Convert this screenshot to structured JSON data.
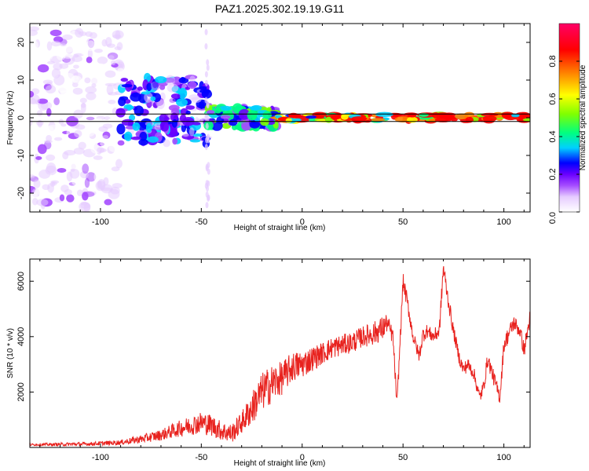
{
  "title": "PAZ1.2025.302.19.19.G11",
  "colors": {
    "snr_line": "#e8221e",
    "frame": "#000000",
    "colormap": [
      "#ffffff",
      "#e6ccff",
      "#a64dff",
      "#6a00ff",
      "#0000ff",
      "#00d0ff",
      "#00ff80",
      "#80ff00",
      "#ffff00",
      "#ff8000",
      "#ff0000",
      "#ff0066"
    ]
  },
  "chart_data": [
    {
      "type": "heatmap",
      "name": "spectrogram",
      "xlabel": "Height of straight line (km)",
      "ylabel": "Frequency (Hz)",
      "xlim": [
        -135,
        113
      ],
      "ylim": [
        -25,
        25
      ],
      "x_ticks": [
        -100,
        -50,
        0,
        50,
        100
      ],
      "y_ticks": [
        -20,
        -10,
        0,
        10,
        20
      ],
      "x_tick_labels": [
        "-100",
        "-50",
        "0",
        "50",
        "100"
      ],
      "y_tick_labels": [
        "-20",
        "-10",
        "0",
        "10",
        "20"
      ],
      "colorbar": {
        "label": "Normalized spectral amplitude",
        "range": [
          0,
          1
        ],
        "ticks": [
          0,
          0.2,
          0.4,
          0.6,
          0.8
        ],
        "tick_labels": [
          "0.0",
          "0.2",
          "0.4",
          "0.6",
          "0.8"
        ]
      },
      "reference_lines_hz": [
        1,
        -1
      ],
      "description_of_signal": [
        {
          "x_range": [
            -135,
            -90
          ],
          "frequency_spread_hz": 24,
          "amplitude": 0.1
        },
        {
          "x_range": [
            -90,
            -47
          ],
          "frequency_spread_hz": 10,
          "amplitude": 0.25
        },
        {
          "x_range": [
            -47,
            -12
          ],
          "frequency_spread_hz": 3,
          "amplitude": 0.35
        },
        {
          "x_range": [
            -12,
            113
          ],
          "frequency_spread_hz": 1,
          "amplitude": 0.8
        }
      ]
    },
    {
      "type": "line",
      "name": "snr",
      "xlabel": "Height of straight line (km)",
      "ylabel": "SNR (10 * v/v)",
      "xlim": [
        -135,
        113
      ],
      "ylim": [
        0,
        6800
      ],
      "x_ticks": [
        -100,
        -50,
        0,
        50,
        100
      ],
      "y_ticks": [
        2000,
        4000,
        6000
      ],
      "x_tick_labels": [
        "-100",
        "-50",
        "0",
        "50",
        "100"
      ],
      "y_tick_labels": [
        "2000",
        "4000",
        "6000"
      ],
      "series": [
        {
          "name": "SNR",
          "x": [
            -135,
            -120,
            -105,
            -90,
            -80,
            -70,
            -60,
            -50,
            -45,
            -40,
            -35,
            -30,
            -25,
            -20,
            -15,
            -10,
            -5,
            0,
            5,
            10,
            15,
            20,
            25,
            30,
            35,
            40,
            42,
            45,
            47,
            50,
            52,
            55,
            58,
            60,
            62,
            65,
            68,
            70,
            72,
            75,
            78,
            80,
            82,
            85,
            88,
            90,
            92,
            95,
            98,
            100,
            103,
            105,
            108,
            110,
            113
          ],
          "values": [
            100,
            110,
            130,
            180,
            300,
            450,
            700,
            900,
            800,
            600,
            500,
            900,
            1400,
            2000,
            2300,
            2500,
            2900,
            3000,
            3200,
            3400,
            3600,
            3700,
            3800,
            4000,
            4100,
            4300,
            4500,
            4000,
            1500,
            6000,
            5300,
            4000,
            3300,
            4100,
            4200,
            4000,
            4200,
            6500,
            5500,
            4200,
            3200,
            2800,
            3000,
            2700,
            1800,
            2200,
            3200,
            2500,
            1800,
            3700,
            4200,
            4500,
            4200,
            3500,
            4700
          ],
          "jitter_amplitude": [
            40,
            60,
            70,
            90,
            150,
            200,
            300,
            400,
            400,
            350,
            350,
            400,
            600,
            700,
            700,
            600,
            550,
            500,
            450,
            400,
            400,
            380,
            380,
            380,
            420,
            450,
            350,
            300,
            250,
            300,
            300,
            250,
            250,
            300,
            250,
            250,
            300,
            350,
            300,
            250,
            250,
            250,
            250,
            250,
            250,
            250,
            280,
            280,
            260,
            300,
            300,
            280,
            280,
            300,
            300
          ]
        }
      ]
    }
  ]
}
